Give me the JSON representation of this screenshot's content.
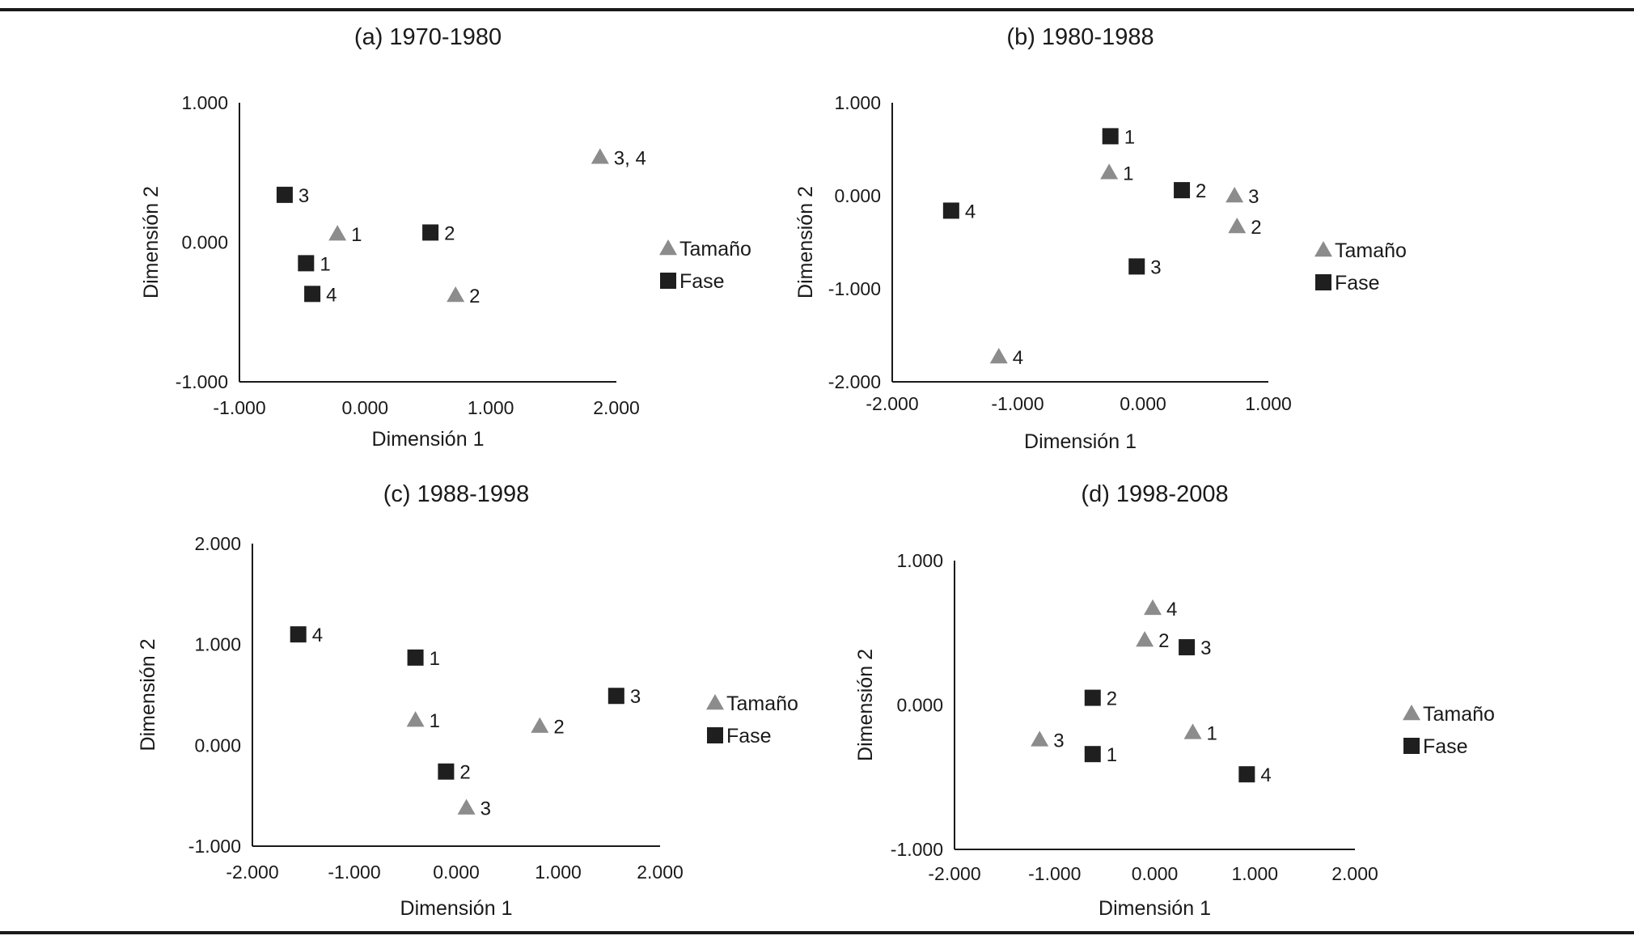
{
  "colors": {
    "tamano": "#8c8c8c",
    "fase": "#1f1f1f",
    "text": "#1a1a1a"
  },
  "legend": {
    "tamano": "Tamaño",
    "fase": "Fase"
  },
  "chart_data": [
    {
      "id": "a",
      "type": "scatter",
      "title": "(a) 1970-1980",
      "xlabel": "Dimensión 1",
      "ylabel": "Dimensión 2",
      "xlim": [
        -1.0,
        2.0
      ],
      "ylim": [
        -1.0,
        1.0
      ],
      "xticks": [
        "-1.000",
        "0.000",
        "1.000",
        "2.000"
      ],
      "yticks": [
        "-1.000",
        "0.000",
        "1.000"
      ],
      "series": [
        {
          "name": "Tamaño",
          "marker": "triangle",
          "points": [
            {
              "x": -0.22,
              "y": 0.06,
              "label": "1"
            },
            {
              "x": 0.72,
              "y": -0.38,
              "label": "2"
            },
            {
              "x": 1.87,
              "y": 0.61,
              "label": "3, 4"
            }
          ]
        },
        {
          "name": "Fase",
          "marker": "square",
          "points": [
            {
              "x": -0.47,
              "y": -0.15,
              "label": "1"
            },
            {
              "x": 0.52,
              "y": 0.07,
              "label": "2"
            },
            {
              "x": -0.64,
              "y": 0.34,
              "label": "3"
            },
            {
              "x": -0.42,
              "y": -0.37,
              "label": "4"
            }
          ]
        }
      ]
    },
    {
      "id": "b",
      "type": "scatter",
      "title": "(b) 1980-1988",
      "xlabel": "Dimensión 1",
      "ylabel": "Dimensión 2",
      "xlim": [
        -2.0,
        1.0
      ],
      "ylim": [
        -2.0,
        1.0
      ],
      "xticks": [
        "-2.000",
        "-1.000",
        "0.000",
        "1.000"
      ],
      "yticks": [
        "-2.000",
        "-1.000",
        "0.000",
        "1.000"
      ],
      "series": [
        {
          "name": "Tamaño",
          "marker": "triangle",
          "points": [
            {
              "x": -0.27,
              "y": 0.25,
              "label": "1"
            },
            {
              "x": 0.75,
              "y": -0.33,
              "label": "2"
            },
            {
              "x": 0.73,
              "y": 0.0,
              "label": "3"
            },
            {
              "x": -1.15,
              "y": -1.73,
              "label": "4"
            }
          ]
        },
        {
          "name": "Fase",
          "marker": "square",
          "points": [
            {
              "x": -0.26,
              "y": 0.64,
              "label": "1"
            },
            {
              "x": 0.31,
              "y": 0.06,
              "label": "2"
            },
            {
              "x": -0.05,
              "y": -0.76,
              "label": "3"
            },
            {
              "x": -1.53,
              "y": -0.16,
              "label": "4"
            }
          ]
        }
      ]
    },
    {
      "id": "c",
      "type": "scatter",
      "title": "(c) 1988-1998",
      "xlabel": "Dimensión 1",
      "ylabel": "Dimensión 2",
      "xlim": [
        -2.0,
        2.0
      ],
      "ylim": [
        -1.0,
        2.0
      ],
      "xticks": [
        "-2.000",
        "-1.000",
        "0.000",
        "1.000",
        "2.000"
      ],
      "yticks": [
        "-1.000",
        "0.000",
        "1.000",
        "2.000"
      ],
      "series": [
        {
          "name": "Tamaño",
          "marker": "triangle",
          "points": [
            {
              "x": -0.4,
              "y": 0.25,
              "label": "1"
            },
            {
              "x": 0.82,
              "y": 0.19,
              "label": "2"
            },
            {
              "x": 0.1,
              "y": -0.62,
              "label": "3"
            }
          ]
        },
        {
          "name": "Fase",
          "marker": "square",
          "points": [
            {
              "x": -0.4,
              "y": 0.87,
              "label": "1"
            },
            {
              "x": -0.1,
              "y": -0.26,
              "label": "2"
            },
            {
              "x": 1.57,
              "y": 0.49,
              "label": "3"
            },
            {
              "x": -1.55,
              "y": 1.1,
              "label": "4"
            }
          ]
        }
      ]
    },
    {
      "id": "d",
      "type": "scatter",
      "title": "(d) 1998-2008",
      "xlabel": "Dimensión 1",
      "ylabel": "Dimensión 2",
      "xlim": [
        -2.0,
        2.0
      ],
      "ylim": [
        -1.0,
        1.0
      ],
      "xticks": [
        "-2.000",
        "-1.000",
        "0.000",
        "1.000",
        "2.000"
      ],
      "yticks": [
        "-1.000",
        "0.000",
        "1.000"
      ],
      "series": [
        {
          "name": "Tamaño",
          "marker": "triangle",
          "points": [
            {
              "x": 0.38,
              "y": -0.19,
              "label": "1"
            },
            {
              "x": -0.1,
              "y": 0.45,
              "label": "2"
            },
            {
              "x": -1.15,
              "y": -0.24,
              "label": "3"
            },
            {
              "x": -0.02,
              "y": 0.67,
              "label": "4"
            }
          ]
        },
        {
          "name": "Fase",
          "marker": "square",
          "points": [
            {
              "x": -0.62,
              "y": -0.34,
              "label": "1"
            },
            {
              "x": -0.62,
              "y": 0.05,
              "label": "2"
            },
            {
              "x": 0.32,
              "y": 0.4,
              "label": "3"
            },
            {
              "x": 0.92,
              "y": -0.48,
              "label": "4"
            }
          ]
        }
      ]
    }
  ]
}
